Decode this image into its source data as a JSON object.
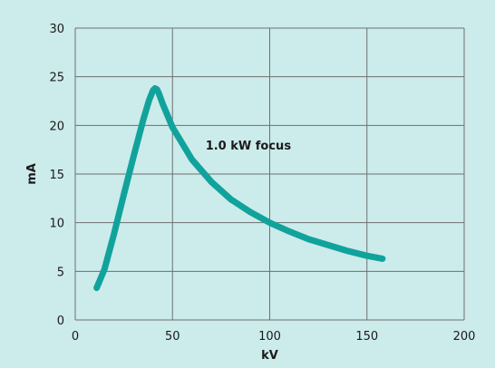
{
  "colors": {
    "background": "#ccebeb",
    "grid": "#6f6f6f",
    "series": "#11a39b",
    "text": "#1a1a1a"
  },
  "chart_data": {
    "type": "line",
    "title": "",
    "xlabel": "kV",
    "ylabel": "mA",
    "xlim": [
      0,
      200
    ],
    "ylim": [
      0,
      30
    ],
    "xticks": [
      0,
      50,
      100,
      150,
      200
    ],
    "yticks": [
      0,
      5,
      10,
      15,
      20,
      25,
      30
    ],
    "grid": true,
    "annotations": [
      {
        "text": "1.0 kW focus",
        "x": 67,
        "y": 17.5
      }
    ],
    "series": [
      {
        "x": [
          11,
          15,
          20,
          25,
          30,
          35,
          38,
          40,
          41,
          42,
          43,
          45,
          50,
          60,
          70,
          80,
          90,
          100,
          110,
          120,
          130,
          140,
          150,
          158
        ],
        "values": [
          3.3,
          5.2,
          8.9,
          12.9,
          16.8,
          20.6,
          22.6,
          23.6,
          23.8,
          23.7,
          23.3,
          22.2,
          19.8,
          16.5,
          14.2,
          12.4,
          11.1,
          10.0,
          9.1,
          8.3,
          7.7,
          7.1,
          6.6,
          6.3
        ]
      }
    ]
  }
}
